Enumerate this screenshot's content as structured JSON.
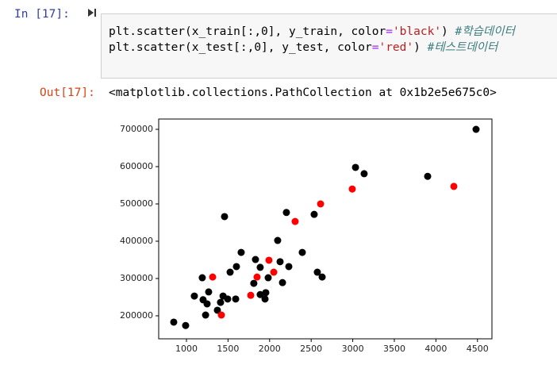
{
  "cell_in": {
    "prompt": "In [17]:",
    "lines": [
      [
        "plt.scatter(x_train[:,0], y_train, color",
        "=",
        "'black'",
        ")",
        " #학습데이터"
      ],
      [
        "plt.scatter(x_test[:,0], y_test, color",
        "=",
        "'red'",
        ")",
        " #테스트데이터"
      ]
    ]
  },
  "cell_out": {
    "prompt": "Out[17]:",
    "text": "<matplotlib.collections.PathCollection at 0x1b2e5e675c0>"
  },
  "chart_data": {
    "type": "scatter",
    "xlim": [
      666,
      4674
    ],
    "ylim": [
      138300,
      727660
    ],
    "xticks": [
      1000,
      1500,
      2000,
      2500,
      3000,
      3500,
      4000,
      4500
    ],
    "yticks": [
      200000,
      300000,
      400000,
      500000,
      600000,
      700000
    ],
    "series": [
      {
        "color": "black",
        "x": [
          847,
          990,
          1095,
          1200,
          1248,
          1190,
          1267,
          1230,
          1372,
          1410,
          1440,
          1496,
          1458,
          1525,
          1592,
          1601,
          1658,
          1830,
          1810,
          1887,
          1887,
          1945,
          1954,
          1983,
          2097,
          2126,
          2155,
          2202,
          2231,
          2393,
          2536,
          2574,
          2632,
          3033,
          3137,
          3901,
          4483
        ],
        "values": [
          183000,
          174000,
          253000,
          243000,
          232000,
          302000,
          264000,
          202000,
          215000,
          236000,
          253000,
          245000,
          466000,
          317000,
          245000,
          332000,
          370000,
          351000,
          287000,
          330000,
          257000,
          245000,
          262000,
          302000,
          402000,
          345000,
          289000,
          477000,
          332000,
          370000,
          472000,
          317000,
          304000,
          598000,
          581000,
          574000,
          700000
        ]
      },
      {
        "color": "red",
        "x": [
          1315,
          1420,
          1773,
          1849,
          1992,
          2050,
          2307,
          2613,
          2994,
          4216
        ],
        "values": [
          304000,
          202000,
          255000,
          304000,
          349000,
          317000,
          453000,
          500000,
          540000,
          547000
        ]
      }
    ]
  }
}
